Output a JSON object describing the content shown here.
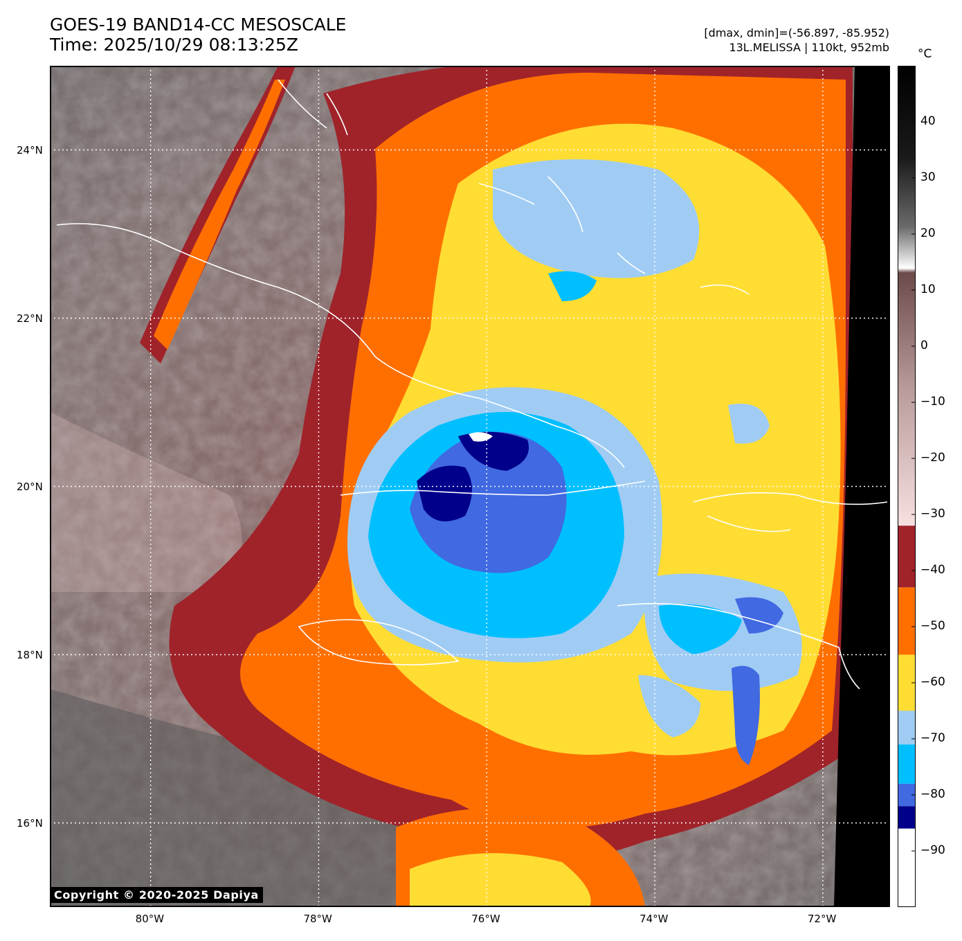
{
  "title_line1": "GOES-19 BAND14-CC MESOSCALE",
  "title_line2": "Time: 2025/10/29 08:13:25Z",
  "stats_line": "[dmax, dmin]=(-56.897, -85.952)",
  "storm_line": "13L.MELISSA | 110kt, 952mb",
  "unit_label": "°C",
  "copyright": "Copyright © 2020-2025 Dapiya",
  "map": {
    "lon_ticks": [
      {
        "lon": -80,
        "label": "80°W"
      },
      {
        "lon": -78,
        "label": "78°W"
      },
      {
        "lon": -76,
        "label": "76°W"
      },
      {
        "lon": -74,
        "label": "74°W"
      },
      {
        "lon": -72,
        "label": "72°W"
      }
    ],
    "lat_ticks": [
      {
        "lat": 24,
        "label": "24°N"
      },
      {
        "lat": 22,
        "label": "22°N"
      },
      {
        "lat": 20,
        "label": "20°N"
      },
      {
        "lat": 18,
        "label": "18°N"
      },
      {
        "lat": 16,
        "label": "16°N"
      }
    ],
    "eye_center": {
      "lat": 20.2,
      "lon": -76.0
    }
  },
  "colorbar": {
    "range": [
      -100,
      50
    ],
    "ticks": [
      "40",
      "30",
      "20",
      "10",
      "0",
      "−10",
      "−20",
      "−30",
      "−40",
      "−50",
      "−60",
      "−70",
      "−80",
      "−90"
    ],
    "tick_values": [
      40,
      30,
      20,
      10,
      0,
      -10,
      -20,
      -30,
      -40,
      -50,
      -60,
      -70,
      -80,
      -90
    ],
    "bands": [
      {
        "from": -100,
        "to": -86,
        "color": "#ffffff"
      },
      {
        "from": -86,
        "to": -82,
        "color": "#00008b"
      },
      {
        "from": -82,
        "to": -78,
        "color": "#4169e1"
      },
      {
        "from": -78,
        "to": -71,
        "color": "#00bfff"
      },
      {
        "from": -71,
        "to": -65,
        "color": "#a0ccf4"
      },
      {
        "from": -65,
        "to": -55,
        "color": "#ffdd33"
      },
      {
        "from": -55,
        "to": -43,
        "color": "#ff6f00"
      },
      {
        "from": -43,
        "to": -32,
        "color": "#a0232a"
      }
    ]
  }
}
